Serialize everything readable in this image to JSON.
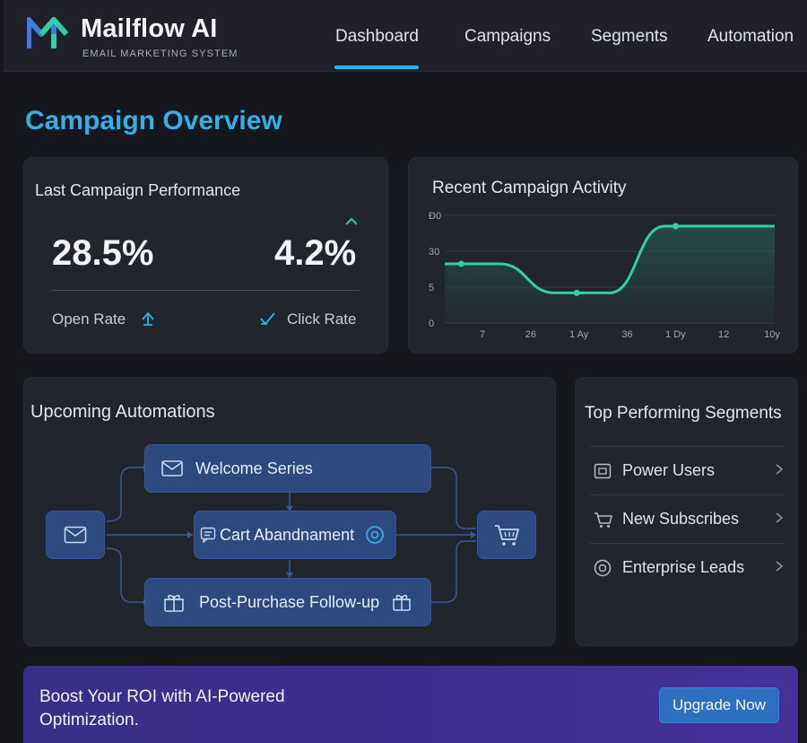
{
  "brand": {
    "name": "Mailflow AI",
    "tagline": "EMAIL MARKETING SYSTEM",
    "accent": "#2bb3e8"
  },
  "nav": {
    "items": [
      "Dashboard",
      "Campaigns",
      "Segments",
      "Automation"
    ],
    "active": "Dashboard"
  },
  "page": {
    "title": "Campaign Overview"
  },
  "performance": {
    "title": "Last Campaign Performance",
    "open_rate_value": "28.5%",
    "open_rate_label": "Open Rate",
    "click_rate_value": "4.2%",
    "click_rate_label": "Click Rate"
  },
  "activity": {
    "title": "Recent Campaign Activity"
  },
  "chart_data": {
    "type": "line",
    "title": "Recent Campaign Activity",
    "y_tick_labels": [
      "Ð0",
      "30",
      "5",
      "0"
    ],
    "x_tick_labels": [
      "7",
      "26",
      "1 Ay",
      "36",
      "1 Dy",
      "12",
      "10y"
    ],
    "x": [
      0,
      1,
      2,
      3,
      4,
      5,
      6
    ],
    "values": [
      55,
      55,
      28,
      28,
      90,
      90,
      90
    ],
    "ylim": [
      0,
      100
    ],
    "marked_points": [
      [
        0.3,
        55
      ],
      [
        2.4,
        28
      ],
      [
        4.2,
        90
      ]
    ],
    "line_color": "#2fd1a4",
    "grid": true
  },
  "automations": {
    "title": "Upcoming Automations",
    "nodes": {
      "welcome": "Welcome Series",
      "cart": "Cart Abandnament",
      "post_purchase": "Post-Purchase Follow-up"
    }
  },
  "segments": {
    "title": "Top Performing Segments",
    "items": [
      {
        "label": "Power Users",
        "icon": "square-icon"
      },
      {
        "label": "New Subscribes",
        "icon": "cart-icon"
      },
      {
        "label": "Enterprise Leads",
        "icon": "circle-target-icon"
      }
    ]
  },
  "banner": {
    "text": "Boost Your ROI with AI-Powered Optimization.",
    "button": "Upgrade Now"
  }
}
